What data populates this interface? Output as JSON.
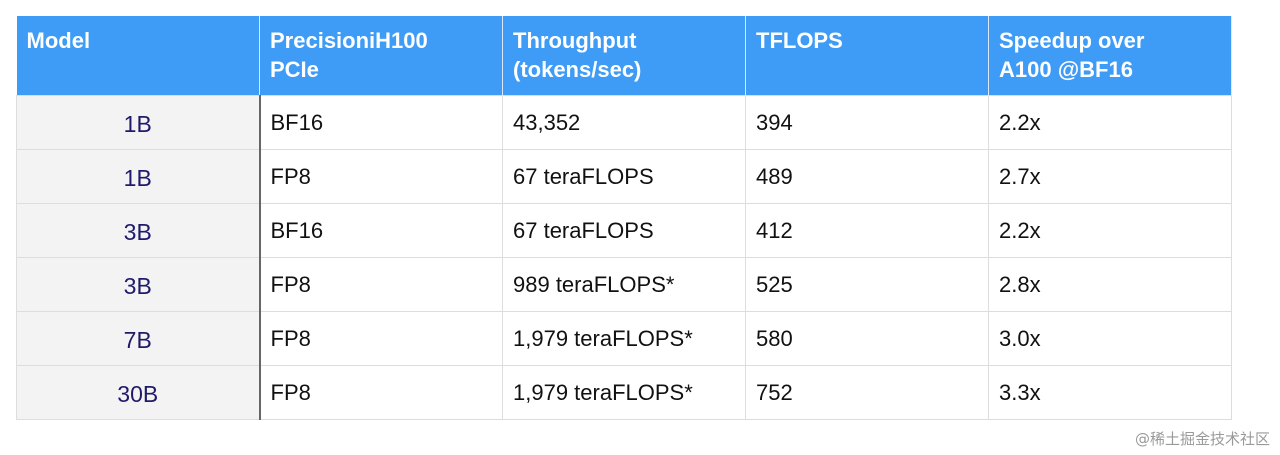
{
  "table": {
    "header": [
      [
        "Model"
      ],
      [
        "PrecisioniH100",
        "PCIe"
      ],
      [
        "Throughput",
        "(tokens/sec)"
      ],
      [
        "TFLOPS"
      ],
      [
        "Speedup over",
        "A100 @BF16"
      ]
    ],
    "rows": [
      [
        "1B",
        "BF16",
        "43,352",
        "394",
        "2.2x"
      ],
      [
        "1B",
        "FP8",
        "67 teraFLOPS",
        "489",
        "2.7x"
      ],
      [
        "3B",
        "BF16",
        "67 teraFLOPS",
        "412",
        "2.2x"
      ],
      [
        "3B",
        "FP8",
        "989 teraFLOPS*",
        "525",
        "2.8x"
      ],
      [
        "7B",
        "FP8",
        "1,979 teraFLOPS*",
        "580",
        "3.0x"
      ],
      [
        "30B",
        "FP8",
        "1,979 teraFLOPS*",
        "752",
        "3.3x"
      ]
    ]
  },
  "watermark": "@稀土掘金技术社区"
}
